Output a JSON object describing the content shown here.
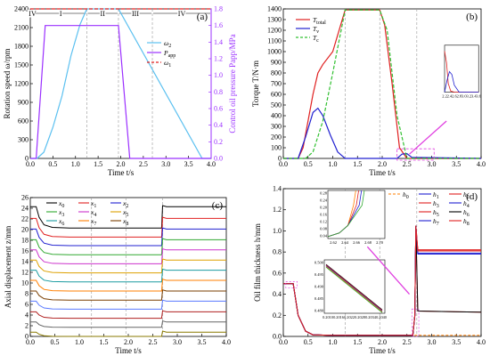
{
  "chart_data": [
    {
      "type": "line",
      "panel_label": "(a)",
      "xlabel": "Time t/s",
      "ylabel": "Rotation speed ω/rpm",
      "y2label": "Control oil pressure Papp/MPa",
      "xlim": [
        0,
        4.0
      ],
      "ylim": [
        0,
        2400
      ],
      "y2lim": [
        0,
        1.8
      ],
      "x_ticks": [
        "0.0",
        "0.5",
        "1.0",
        "1.5",
        "2.0",
        "2.5",
        "3.0",
        "3.5",
        "4.0"
      ],
      "y_ticks": [
        "0",
        "300",
        "600",
        "900",
        "1200",
        "1500",
        "1800",
        "2100",
        "2400"
      ],
      "y2_ticks": [
        "0.0",
        "0.2",
        "0.4",
        "0.6",
        "0.8",
        "1.0",
        "1.2",
        "1.4",
        "1.6",
        "1.8"
      ],
      "phases": [
        {
          "label": "IV",
          "x": [
            0.0,
            0.1
          ]
        },
        {
          "label": "I",
          "x": [
            0.1,
            1.25
          ]
        },
        {
          "label": "II",
          "x": [
            1.25,
            1.95
          ]
        },
        {
          "label": "III",
          "x": [
            1.95,
            2.7
          ]
        },
        {
          "label": "IV",
          "x": [
            2.7,
            4.0
          ]
        }
      ],
      "legend_position": "center-right",
      "series": [
        {
          "name": "ω2",
          "color": "#5bc0f0",
          "axis": "left",
          "x": [
            0,
            0.15,
            0.3,
            0.5,
            0.7,
            0.9,
            1.1,
            1.25,
            1.95,
            3.8,
            4.0
          ],
          "values": [
            0,
            0,
            100,
            500,
            1000,
            1650,
            2150,
            2400,
            2400,
            0,
            0
          ]
        },
        {
          "name": "Papp",
          "color": "#9b30ff",
          "axis": "right",
          "x": [
            0,
            0.13,
            0.33,
            1.95,
            2.2,
            4.0
          ],
          "values": [
            0,
            0,
            1.6,
            1.6,
            0,
            0
          ]
        },
        {
          "name": "ω1",
          "color": "#e02020",
          "style": "dashed",
          "axis": "left",
          "x": [
            0,
            4.0
          ],
          "values": [
            2400,
            2400
          ]
        }
      ]
    },
    {
      "type": "line",
      "panel_label": "(b)",
      "xlabel": "Time t/s",
      "ylabel": "Torque T/N·m",
      "xlim": [
        0,
        4.0
      ],
      "ylim": [
        0,
        1400
      ],
      "x_ticks": [
        "0.0",
        "0.5",
        "1.0",
        "1.5",
        "2.0",
        "2.5",
        "3.0",
        "3.5",
        "4.0"
      ],
      "y_ticks": [
        "0",
        "100",
        "200",
        "300",
        "400",
        "500",
        "600",
        "700",
        "800",
        "900",
        "1000",
        "1100",
        "1200",
        "1300",
        "1400"
      ],
      "legend_position": "top-left",
      "series": [
        {
          "name": "Ttotal",
          "color": "#e02020",
          "x": [
            0,
            0.3,
            0.4,
            0.5,
            0.6,
            0.7,
            0.8,
            1.0,
            1.25,
            1.95,
            2.05,
            2.2,
            2.35,
            2.5,
            4.0
          ],
          "values": [
            0,
            0,
            100,
            350,
            600,
            800,
            880,
            1000,
            1390,
            1390,
            1250,
            700,
            100,
            0,
            0
          ]
        },
        {
          "name": "Tv",
          "color": "#2020d0",
          "x": [
            0,
            0.3,
            0.45,
            0.6,
            0.7,
            0.8,
            0.95,
            1.1,
            1.25,
            2.3,
            2.4,
            2.5,
            2.6,
            4.0
          ],
          "values": [
            0,
            0,
            200,
            430,
            470,
            400,
            220,
            60,
            0,
            0,
            40,
            45,
            10,
            0
          ]
        },
        {
          "name": "Tc",
          "color": "#30c030",
          "style": "dashed",
          "x": [
            0,
            0.45,
            0.6,
            0.8,
            1.0,
            1.25,
            1.95,
            2.1,
            2.3,
            2.5,
            4.0
          ],
          "values": [
            0,
            0,
            60,
            350,
            800,
            1390,
            1390,
            1200,
            400,
            0,
            0
          ]
        }
      ],
      "inset_ticks": [
        "2.2",
        "2.4",
        "2.6",
        "2.8",
        "3.0",
        "3.2",
        "3.4",
        "3.6"
      ]
    },
    {
      "type": "line",
      "panel_label": "(c)",
      "xlabel": "Time t/s",
      "ylabel": "Axial displacement z/mm",
      "xlim": [
        0,
        4.0
      ],
      "ylim": [
        0,
        26
      ],
      "x_ticks": [
        "0.0",
        "0.5",
        "1.0",
        "1.5",
        "2.0",
        "2.5",
        "3.0",
        "3.5",
        "4.0"
      ],
      "y_ticks": [
        "0",
        "2",
        "4",
        "6",
        "8",
        "10",
        "12",
        "14",
        "16",
        "18",
        "20",
        "22",
        "24",
        "26"
      ],
      "legend_position": "top-left",
      "series": [
        {
          "name": "x0",
          "color": "#000000",
          "start": 24.3,
          "low": 20.3
        },
        {
          "name": "x1",
          "color": "#e02020",
          "start": 22.1,
          "low": 18.6
        },
        {
          "name": "x2",
          "color": "#2020d0",
          "start": 20.1,
          "low": 17.0
        },
        {
          "name": "x3",
          "color": "#30a830",
          "start": 18.1,
          "low": 15.3
        },
        {
          "name": "x4",
          "color": "#cc33cc",
          "start": 16.2,
          "low": 13.6
        },
        {
          "name": "x5",
          "color": "#dda000",
          "start": 14.3,
          "low": 11.9
        },
        {
          "name": "x6",
          "color": "#1a9ba0",
          "start": 12.4,
          "low": 10.2
        },
        {
          "name": "x7",
          "color": "#ff7f00",
          "start": 10.5,
          "low": 8.5
        },
        {
          "name": "x8",
          "color": "#7a3e00",
          "start": 8.5,
          "low": 6.8
        },
        {
          "name": "",
          "color": "#5a7aff",
          "start": 6.6,
          "low": 5.1
        },
        {
          "name": "",
          "color": "#b02020",
          "start": 4.6,
          "low": 3.4
        },
        {
          "name": "",
          "color": "#666666",
          "start": 2.7,
          "low": 1.7
        },
        {
          "name": "",
          "color": "#8a7a00",
          "start": 0.8,
          "low": 0.0
        }
      ]
    },
    {
      "type": "line",
      "panel_label": "(d)",
      "xlabel": "Time t/s",
      "ylabel": "Oil film thickness h/mm",
      "xlim": [
        0,
        4.0
      ],
      "ylim": [
        0,
        1.4
      ],
      "x_ticks": [
        "0.0",
        "0.5",
        "1.0",
        "1.5",
        "2.0",
        "2.5",
        "3.0",
        "3.5",
        "4.0"
      ],
      "y_ticks": [
        "0.0",
        "0.2",
        "0.4",
        "0.6",
        "0.8",
        "1.0",
        "1.2",
        "1.4"
      ],
      "legend_position": "top-right",
      "series": [
        {
          "name": "h0",
          "color": "#ff7f00",
          "style": "dashed"
        },
        {
          "name": "h1",
          "color": "#2020d0"
        },
        {
          "name": "h2",
          "color": "#e02020"
        },
        {
          "name": "h3",
          "color": "#e02020"
        },
        {
          "name": "h4",
          "color": "#2020d0"
        },
        {
          "name": "h5",
          "color": "#e02020"
        },
        {
          "name": "h6",
          "color": "#000000"
        },
        {
          "name": "h7",
          "color": "#2020d0"
        },
        {
          "name": "h8",
          "color": "#e02020"
        }
      ],
      "inset_top": {
        "x_ticks": [
          "2.62",
          "2.64",
          "2.66",
          "2.68",
          "2.70"
        ],
        "y_ticks": [
          "0.04",
          "0.08",
          "0.12",
          "0.16",
          "0.20",
          "0.24",
          "0.28"
        ]
      },
      "inset_bottom": {
        "x_ticks": [
          "0.2010",
          "0.2016",
          "0.2022",
          "0.2028",
          "0.2034",
          "0.2040"
        ],
        "y_ticks": [
          "0.480",
          "0.485",
          "0.490",
          "0.495",
          "0.500"
        ]
      }
    }
  ]
}
